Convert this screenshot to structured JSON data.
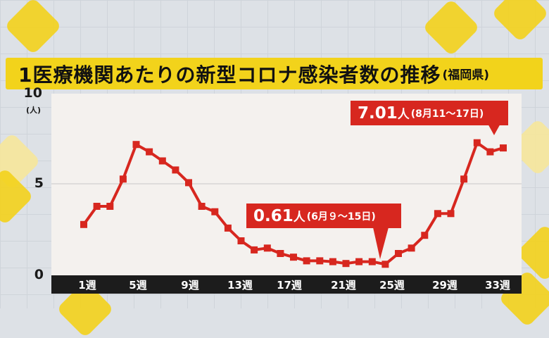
{
  "title": {
    "main": "1医療機関あたりの新型コロナ感染者数の推移",
    "sub": "(福岡県)"
  },
  "colors": {
    "line": "#d7271f",
    "title_bg": "#f2d31b",
    "axis_bar": "#1c1c1c"
  },
  "chart_data": {
    "type": "line",
    "title": "1医療機関あたりの新型コロナ感染者数の推移(福岡県)",
    "ylabel": "(人)",
    "ylim": [
      0,
      10
    ],
    "yticks": [
      "0",
      "5",
      "10"
    ],
    "xtick_labels": [
      "1週",
      "5週",
      "9週",
      "13週",
      "17週",
      "21週",
      "25週",
      "29週",
      "33週"
    ],
    "x": [
      1,
      2,
      3,
      4,
      5,
      6,
      7,
      8,
      9,
      10,
      11,
      12,
      13,
      14,
      15,
      16,
      17,
      18,
      19,
      20,
      21,
      22,
      23,
      24,
      25,
      26,
      27,
      28,
      29,
      30,
      31,
      32,
      33
    ],
    "values": [
      2.8,
      3.8,
      3.8,
      5.3,
      7.2,
      6.8,
      6.3,
      5.8,
      5.1,
      3.8,
      3.5,
      2.6,
      1.9,
      1.4,
      1.5,
      1.2,
      1.0,
      0.8,
      0.8,
      0.75,
      0.65,
      0.75,
      0.75,
      0.61,
      1.2,
      1.5,
      2.2,
      3.4,
      3.4,
      5.3,
      7.3,
      6.8,
      7.01
    ],
    "grid": "y at 5",
    "annotations": [
      {
        "value": "7.01",
        "unit": "人",
        "detail": "(8月11～17日)"
      },
      {
        "value": "0.61",
        "unit": "人",
        "detail": "(6月９～15日)"
      }
    ]
  }
}
